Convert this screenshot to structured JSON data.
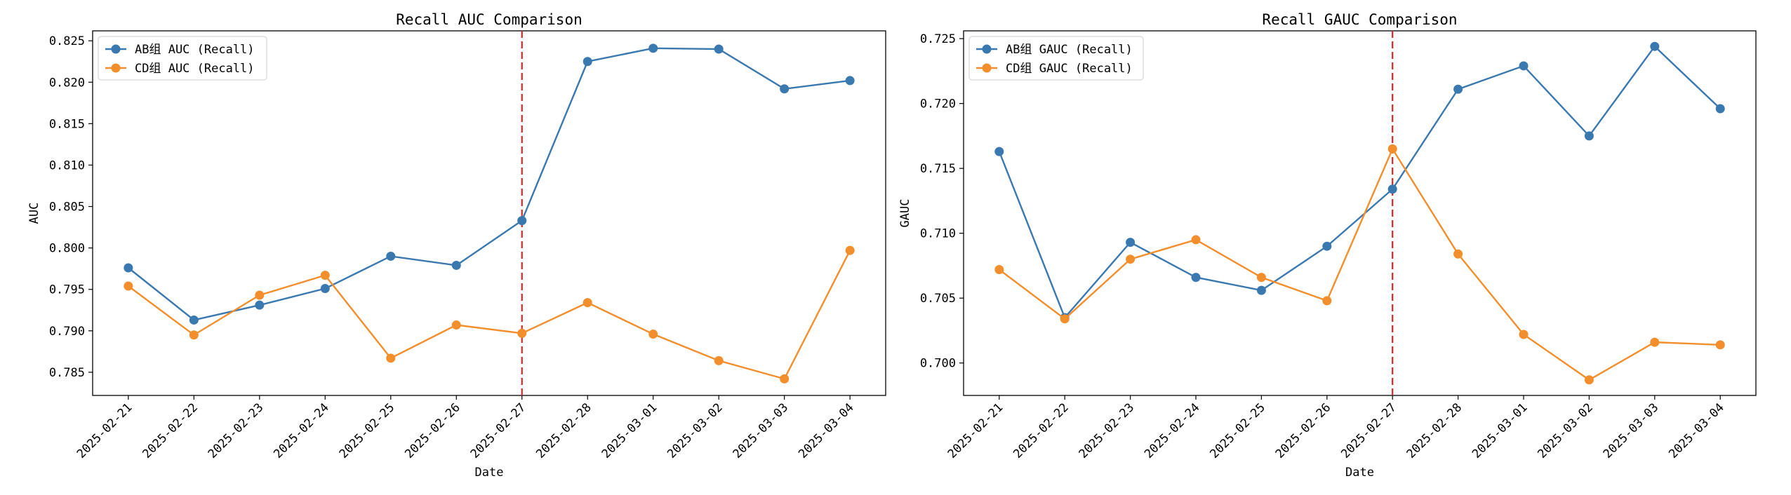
{
  "chart_data": [
    {
      "type": "line",
      "title": "Recall AUC Comparison",
      "xlabel": "Date",
      "ylabel": "AUC",
      "categories": [
        "2025-02-21",
        "2025-02-22",
        "2025-02-23",
        "2025-02-24",
        "2025-02-25",
        "2025-02-26",
        "2025-02-27",
        "2025-02-28",
        "2025-03-01",
        "2025-03-02",
        "2025-03-03",
        "2025-03-04"
      ],
      "ylim": [
        0.7822,
        0.8262
      ],
      "yticks": [
        0.785,
        0.79,
        0.795,
        0.8,
        0.805,
        0.81,
        0.815,
        0.82,
        0.825
      ],
      "ytick_labels": [
        "0.785",
        "0.790",
        "0.795",
        "0.800",
        "0.805",
        "0.810",
        "0.815",
        "0.820",
        "0.825"
      ],
      "vline_category": "2025-02-27",
      "vline_color": "#d62728",
      "legend_position": "top-left",
      "grid": false,
      "series": [
        {
          "name": "AB组 AUC (Recall)",
          "color": "#3a78b0",
          "values": [
            0.7976,
            0.7913,
            0.7931,
            0.7951,
            0.799,
            0.7979,
            0.8033,
            0.8225,
            0.8241,
            0.824,
            0.8192,
            0.8202
          ]
        },
        {
          "name": "CD组 AUC (Recall)",
          "color": "#f28e2b",
          "values": [
            0.7954,
            0.7895,
            0.7943,
            0.7967,
            0.7867,
            0.7907,
            0.7897,
            0.7934,
            0.7896,
            0.7864,
            0.7842,
            0.7997
          ]
        }
      ]
    },
    {
      "type": "line",
      "title": "Recall GAUC Comparison",
      "xlabel": "Date",
      "ylabel": "GAUC",
      "categories": [
        "2025-02-21",
        "2025-02-22",
        "2025-02-23",
        "2025-02-24",
        "2025-02-25",
        "2025-02-26",
        "2025-02-27",
        "2025-02-28",
        "2025-03-01",
        "2025-03-02",
        "2025-03-03",
        "2025-03-04"
      ],
      "ylim": [
        0.6975,
        0.7256
      ],
      "yticks": [
        0.7,
        0.705,
        0.71,
        0.715,
        0.72,
        0.725
      ],
      "ytick_labels": [
        "0.700",
        "0.705",
        "0.710",
        "0.715",
        "0.720",
        "0.725"
      ],
      "vline_category": "2025-02-27",
      "vline_color": "#d62728",
      "legend_position": "top-left",
      "grid": false,
      "series": [
        {
          "name": "AB组 GAUC (Recall)",
          "color": "#3a78b0",
          "values": [
            0.7163,
            0.7035,
            0.7093,
            0.7066,
            0.7056,
            0.709,
            0.7134,
            0.7211,
            0.7229,
            0.7175,
            0.7244,
            0.7196
          ]
        },
        {
          "name": "CD组 GAUC (Recall)",
          "color": "#f28e2b",
          "values": [
            0.7072,
            0.7034,
            0.708,
            0.7095,
            0.7066,
            0.7048,
            0.7165,
            0.7084,
            0.7022,
            0.6987,
            0.7016,
            0.7014
          ]
        }
      ]
    }
  ]
}
